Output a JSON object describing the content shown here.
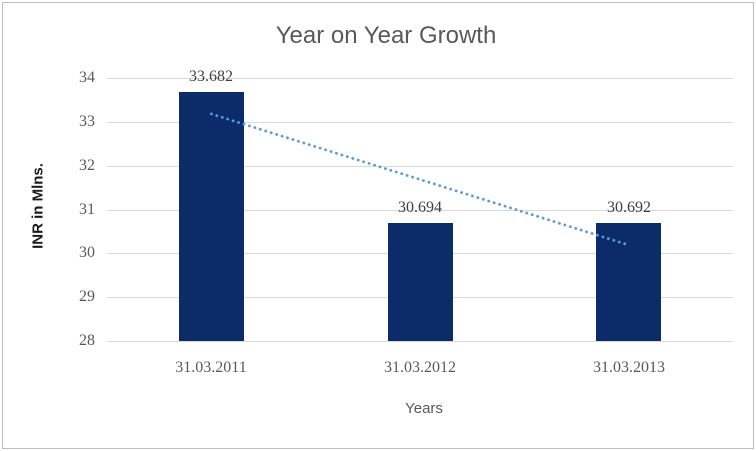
{
  "chart_data": {
    "type": "bar",
    "title": "Year on Year Growth",
    "xlabel": "Years",
    "ylabel": "INR in Mlns.",
    "categories": [
      "31.03.2011",
      "31.03.2012",
      "31.03.2013"
    ],
    "values": [
      33.682,
      30.694,
      30.692
    ],
    "data_labels": [
      "33.682",
      "30.694",
      "30.692"
    ],
    "ylim": [
      28,
      34
    ],
    "yticks": [
      28,
      29,
      30,
      31,
      32,
      33,
      34
    ],
    "grid": true,
    "legend": "none",
    "trendline": {
      "type": "linear",
      "style": "dotted",
      "start_value": 33.18,
      "end_value": 30.19
    }
  },
  "colors": {
    "bar_fill": "#0B2B69",
    "trendline": "#5B9BD5",
    "gridline": "#D9D9D9",
    "title_text": "#595959",
    "tick_text": "#595959",
    "data_label_text": "#404040",
    "axis_title_text": "#1a1a1a",
    "frame_border": "#BDBDBD",
    "background": "#FFFFFF"
  }
}
